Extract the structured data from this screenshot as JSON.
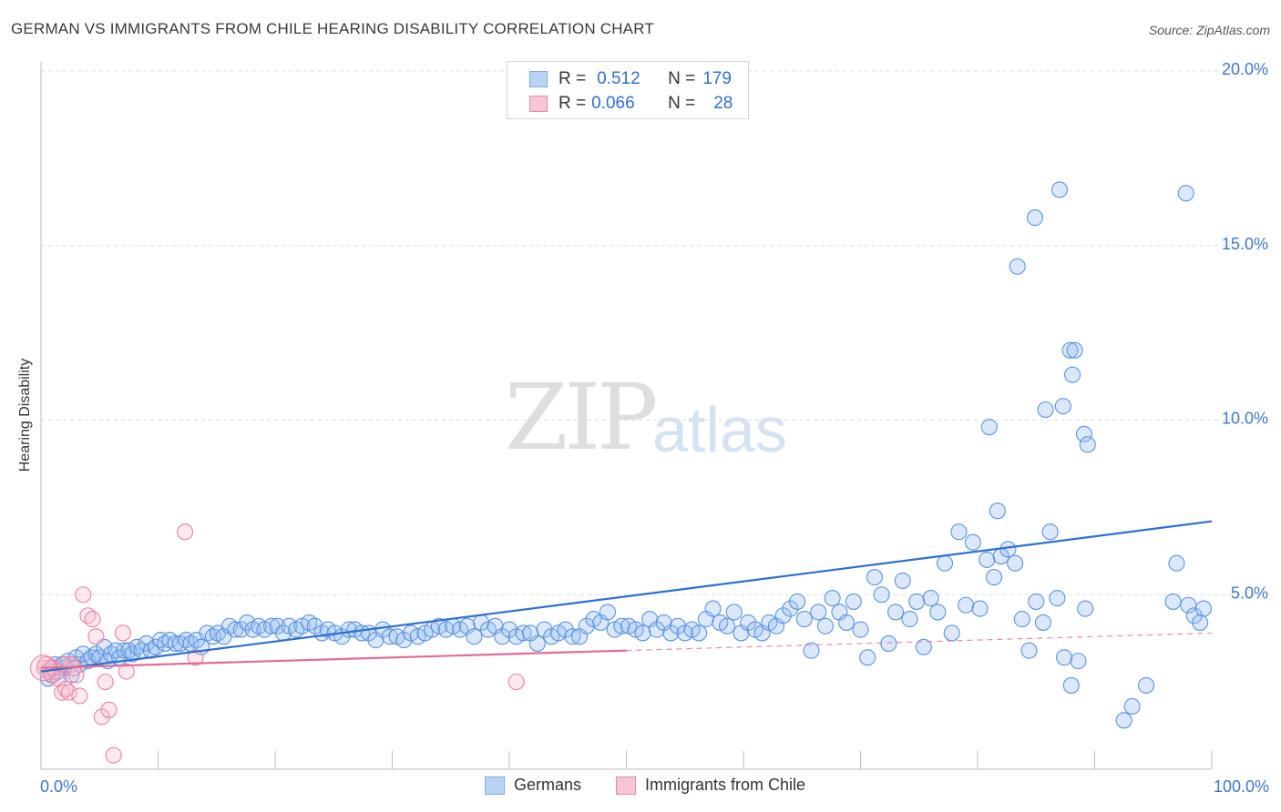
{
  "title": "GERMAN VS IMMIGRANTS FROM CHILE HEARING DISABILITY CORRELATION CHART",
  "source": "Source: ZipAtlas.com",
  "watermark": {
    "zip": "ZIP",
    "atlas": "atlas"
  },
  "legend_top": [
    {
      "r_label": "R =",
      "r_value": "0.512",
      "n_label": "N =",
      "n_value": "179",
      "color": "#7aaae8",
      "fill": "#b9d3f5"
    },
    {
      "r_label": "R =",
      "r_value": "0.066",
      "n_label": "N =",
      "n_value": "28",
      "color": "#e88aa6",
      "fill": "#f7c6d4"
    }
  ],
  "legend_bottom": [
    {
      "label": "Germans",
      "color": "#7aaae8",
      "fill": "#b9d3f5"
    },
    {
      "label": "Immigrants from Chile",
      "color": "#e88aa6",
      "fill": "#f7c6d4"
    }
  ],
  "chart_data": {
    "type": "scatter",
    "ylabel": "Hearing Disability",
    "xlim": [
      0,
      100
    ],
    "ylim": [
      0,
      20
    ],
    "x_tick_labels": [
      "0.0%",
      "100.0%"
    ],
    "y_ticks": [
      {
        "value": 5,
        "label": "5.0%"
      },
      {
        "value": 10,
        "label": "10.0%"
      },
      {
        "value": 15,
        "label": "15.0%"
      },
      {
        "value": 20,
        "label": "20.0%"
      }
    ],
    "series": [
      {
        "name": "Germans",
        "color": "#5b93e0",
        "fill": "rgba(150,190,240,0.35)",
        "line_color": "#2d6fcf",
        "trend": {
          "x": [
            0,
            100
          ],
          "y": [
            2.8,
            7.1
          ]
        },
        "points": [
          [
            0.6,
            2.6
          ],
          [
            0.8,
            2.9
          ],
          [
            1.0,
            2.7
          ],
          [
            1.2,
            3.0
          ],
          [
            1.5,
            2.8
          ],
          [
            1.8,
            3.0
          ],
          [
            2.0,
            2.9
          ],
          [
            2.3,
            3.1
          ],
          [
            2.6,
            2.7
          ],
          [
            3.0,
            3.2
          ],
          [
            3.3,
            3.0
          ],
          [
            3.6,
            3.3
          ],
          [
            4.0,
            3.1
          ],
          [
            4.3,
            3.2
          ],
          [
            4.7,
            3.3
          ],
          [
            5.0,
            3.2
          ],
          [
            5.4,
            3.5
          ],
          [
            5.7,
            3.1
          ],
          [
            6.0,
            3.3
          ],
          [
            6.4,
            3.4
          ],
          [
            6.7,
            3.2
          ],
          [
            7.1,
            3.4
          ],
          [
            7.5,
            3.4
          ],
          [
            7.8,
            3.3
          ],
          [
            8.2,
            3.5
          ],
          [
            8.6,
            3.4
          ],
          [
            9.0,
            3.6
          ],
          [
            9.4,
            3.4
          ],
          [
            9.8,
            3.5
          ],
          [
            10.2,
            3.7
          ],
          [
            10.6,
            3.6
          ],
          [
            11.0,
            3.7
          ],
          [
            11.5,
            3.6
          ],
          [
            11.9,
            3.6
          ],
          [
            12.4,
            3.7
          ],
          [
            12.8,
            3.6
          ],
          [
            13.3,
            3.7
          ],
          [
            13.7,
            3.5
          ],
          [
            14.2,
            3.9
          ],
          [
            14.7,
            3.8
          ],
          [
            15.1,
            3.9
          ],
          [
            15.6,
            3.8
          ],
          [
            16.1,
            4.1
          ],
          [
            16.6,
            4.0
          ],
          [
            17.1,
            4.0
          ],
          [
            17.6,
            4.2
          ],
          [
            18.1,
            4.0
          ],
          [
            18.6,
            4.1
          ],
          [
            19.1,
            4.0
          ],
          [
            19.7,
            4.1
          ],
          [
            20.2,
            4.1
          ],
          [
            20.7,
            3.9
          ],
          [
            21.2,
            4.1
          ],
          [
            21.8,
            4.0
          ],
          [
            22.3,
            4.1
          ],
          [
            22.9,
            4.2
          ],
          [
            23.4,
            4.1
          ],
          [
            24.0,
            3.9
          ],
          [
            24.5,
            4.0
          ],
          [
            25.1,
            3.9
          ],
          [
            25.7,
            3.8
          ],
          [
            26.3,
            4.0
          ],
          [
            26.8,
            4.0
          ],
          [
            27.4,
            3.9
          ],
          [
            28.0,
            3.9
          ],
          [
            28.6,
            3.7
          ],
          [
            29.2,
            4.0
          ],
          [
            29.8,
            3.8
          ],
          [
            30.4,
            3.8
          ],
          [
            31.0,
            3.7
          ],
          [
            31.6,
            3.9
          ],
          [
            32.2,
            3.8
          ],
          [
            32.8,
            3.9
          ],
          [
            33.4,
            4.0
          ],
          [
            34.0,
            4.1
          ],
          [
            34.6,
            4.0
          ],
          [
            35.2,
            4.1
          ],
          [
            35.8,
            4.0
          ],
          [
            36.4,
            4.1
          ],
          [
            37.0,
            3.8
          ],
          [
            37.6,
            4.2
          ],
          [
            38.2,
            4.0
          ],
          [
            38.8,
            4.1
          ],
          [
            39.4,
            3.8
          ],
          [
            40.0,
            4.0
          ],
          [
            40.6,
            3.8
          ],
          [
            41.2,
            3.9
          ],
          [
            41.8,
            3.9
          ],
          [
            42.4,
            3.6
          ],
          [
            43.0,
            4.0
          ],
          [
            43.6,
            3.8
          ],
          [
            44.2,
            3.9
          ],
          [
            44.8,
            4.0
          ],
          [
            45.4,
            3.8
          ],
          [
            46.0,
            3.8
          ],
          [
            46.6,
            4.1
          ],
          [
            47.2,
            4.3
          ],
          [
            47.8,
            4.2
          ],
          [
            48.4,
            4.5
          ],
          [
            49.0,
            4.0
          ],
          [
            49.6,
            4.1
          ],
          [
            50.2,
            4.1
          ],
          [
            50.8,
            4.0
          ],
          [
            51.4,
            3.9
          ],
          [
            52.0,
            4.3
          ],
          [
            52.6,
            4.0
          ],
          [
            53.2,
            4.2
          ],
          [
            53.8,
            3.9
          ],
          [
            54.4,
            4.1
          ],
          [
            55.0,
            3.9
          ],
          [
            55.6,
            4.0
          ],
          [
            56.2,
            3.9
          ],
          [
            56.8,
            4.3
          ],
          [
            57.4,
            4.6
          ],
          [
            58.0,
            4.2
          ],
          [
            58.6,
            4.1
          ],
          [
            59.2,
            4.5
          ],
          [
            59.8,
            3.9
          ],
          [
            60.4,
            4.2
          ],
          [
            61.0,
            4.0
          ],
          [
            61.6,
            3.9
          ],
          [
            62.2,
            4.2
          ],
          [
            62.8,
            4.1
          ],
          [
            63.4,
            4.4
          ],
          [
            64.0,
            4.6
          ],
          [
            64.6,
            4.8
          ],
          [
            65.2,
            4.3
          ],
          [
            65.8,
            3.4
          ],
          [
            66.4,
            4.5
          ],
          [
            67.0,
            4.1
          ],
          [
            67.6,
            4.9
          ],
          [
            68.2,
            4.5
          ],
          [
            68.8,
            4.2
          ],
          [
            69.4,
            4.8
          ],
          [
            70.0,
            4.0
          ],
          [
            70.6,
            3.2
          ],
          [
            71.2,
            5.5
          ],
          [
            71.8,
            5.0
          ],
          [
            72.4,
            3.6
          ],
          [
            73.0,
            4.5
          ],
          [
            73.6,
            5.4
          ],
          [
            74.2,
            4.3
          ],
          [
            74.8,
            4.8
          ],
          [
            75.4,
            3.5
          ],
          [
            76.0,
            4.9
          ],
          [
            76.6,
            4.5
          ],
          [
            77.2,
            5.9
          ],
          [
            77.8,
            3.9
          ],
          [
            78.4,
            6.8
          ],
          [
            79.0,
            4.7
          ],
          [
            79.6,
            6.5
          ],
          [
            80.2,
            4.6
          ],
          [
            80.8,
            6.0
          ],
          [
            81.4,
            5.5
          ],
          [
            82.0,
            6.1
          ],
          [
            82.6,
            6.3
          ],
          [
            83.2,
            5.9
          ],
          [
            83.8,
            4.3
          ],
          [
            84.4,
            3.4
          ],
          [
            85.0,
            4.8
          ],
          [
            85.6,
            4.2
          ],
          [
            86.2,
            6.8
          ],
          [
            86.8,
            4.9
          ],
          [
            87.4,
            3.2
          ],
          [
            88.0,
            2.4
          ],
          [
            88.6,
            3.1
          ],
          [
            89.2,
            4.6
          ],
          [
            81.0,
            9.8
          ],
          [
            81.7,
            7.4
          ],
          [
            83.4,
            14.4
          ],
          [
            85.8,
            10.3
          ],
          [
            87.3,
            10.4
          ],
          [
            89.1,
            9.6
          ],
          [
            89.4,
            9.3
          ],
          [
            84.9,
            15.8
          ],
          [
            87.0,
            16.6
          ],
          [
            87.9,
            12.0
          ],
          [
            88.3,
            12.0
          ],
          [
            88.1,
            11.3
          ],
          [
            92.5,
            1.4
          ],
          [
            93.2,
            1.8
          ],
          [
            94.4,
            2.4
          ],
          [
            96.7,
            4.8
          ],
          [
            97.0,
            5.9
          ],
          [
            97.8,
            16.5
          ],
          [
            98.0,
            4.7
          ],
          [
            98.5,
            4.4
          ],
          [
            99.0,
            4.2
          ],
          [
            99.3,
            4.6
          ]
        ]
      },
      {
        "name": "Immigrants from Chile",
        "color": "#e880a0",
        "fill": "rgba(247,190,208,0.35)",
        "line_color": "#e06d96",
        "trend": {
          "x": [
            0,
            50
          ],
          "y": [
            2.9,
            3.4
          ]
        },
        "trend_dashed": {
          "x": [
            50,
            100
          ],
          "y": [
            3.4,
            3.9
          ]
        },
        "points": [
          [
            0.3,
            2.9
          ],
          [
            0.6,
            2.8
          ],
          [
            0.9,
            2.7
          ],
          [
            1.2,
            2.8
          ],
          [
            1.5,
            2.6
          ],
          [
            1.8,
            2.2
          ],
          [
            2.1,
            2.3
          ],
          [
            2.4,
            2.2
          ],
          [
            2.6,
            3.0
          ],
          [
            3.0,
            2.7
          ],
          [
            3.3,
            2.1
          ],
          [
            3.6,
            5.0
          ],
          [
            4.0,
            4.4
          ],
          [
            4.4,
            4.3
          ],
          [
            4.7,
            3.8
          ],
          [
            5.2,
            1.5
          ],
          [
            5.5,
            2.5
          ],
          [
            5.8,
            1.7
          ],
          [
            6.2,
            0.4
          ],
          [
            7.0,
            3.9
          ],
          [
            7.3,
            2.8
          ],
          [
            12.3,
            6.8
          ],
          [
            13.2,
            3.2
          ],
          [
            40.6,
            2.5
          ],
          [
            0.4,
            3.0
          ],
          [
            1.0,
            2.9
          ],
          [
            2.0,
            3.0
          ],
          [
            2.8,
            2.9
          ]
        ]
      }
    ]
  }
}
